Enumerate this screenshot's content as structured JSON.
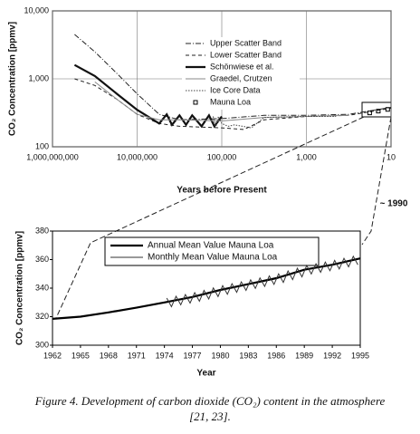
{
  "chart_data": [
    {
      "type": "line",
      "x_label": "Years before Present",
      "y_label": "CO₂ Concentration [ppmv]",
      "xlog": true,
      "ylog": true,
      "grid": true,
      "xlim": [
        1000000000,
        10
      ],
      "ylim": [
        100,
        10000
      ],
      "xticks": [
        {
          "value": 1000000000,
          "label": "1,000,000,000"
        },
        {
          "value": 10000000,
          "label": "10,000,000"
        },
        {
          "value": 100000,
          "label": "100,000"
        },
        {
          "value": 1000,
          "label": "1,000"
        },
        10
      ],
      "yticks": [
        100,
        {
          "value": 1000,
          "label": "1,000"
        },
        {
          "value": 10000,
          "label": "10,000"
        }
      ],
      "annotation": "~ 1990",
      "series": [
        {
          "name": "Upper Scatter Band",
          "color": "#222",
          "style": "dashdot",
          "x": [
            300000000,
            100000000,
            30000000,
            10000000,
            3000000,
            1000000,
            100000,
            10000,
            1000,
            100,
            10
          ],
          "values": [
            4500,
            2500,
            1200,
            600,
            300,
            250,
            260,
            290,
            290,
            300,
            380
          ]
        },
        {
          "name": "Lower Scatter Band",
          "color": "#222",
          "style": "dashed",
          "x": [
            300000000,
            100000000,
            30000000,
            10000000,
            3000000,
            1000000,
            100000,
            30000,
            10000,
            1000,
            100,
            10
          ],
          "values": [
            1000,
            800,
            500,
            300,
            220,
            200,
            190,
            180,
            250,
            280,
            290,
            370
          ]
        },
        {
          "name": "Schönwiese et al.",
          "color": "#111",
          "style": "thick",
          "x": [
            300000000,
            100000000,
            30000000,
            10000000,
            3000000,
            2000000,
            1500000,
            1000000,
            700000,
            500000,
            300000,
            200000,
            150000,
            100000
          ],
          "values": [
            1600,
            1100,
            600,
            350,
            220,
            300,
            210,
            290,
            210,
            290,
            200,
            290,
            200,
            280
          ]
        },
        {
          "name": "Graedel, Crutzen",
          "color": "#888",
          "style": "solid",
          "x": [
            100000000,
            30000000,
            10000000,
            3000000,
            1000000,
            100000,
            10000,
            1000,
            100
          ],
          "values": [
            900,
            500,
            300,
            250,
            250,
            240,
            270,
            280,
            290
          ]
        },
        {
          "name": "Ice Core Data",
          "color": "#444",
          "style": "dotted",
          "x": [
            160000,
            140000,
            120000,
            100000,
            70000,
            50000,
            20000,
            10000,
            1000,
            200
          ],
          "values": [
            280,
            190,
            280,
            220,
            200,
            210,
            190,
            270,
            280,
            280
          ]
        },
        {
          "name": "Mauna Loa",
          "color": "#000",
          "style": "square",
          "x": [
            32,
            20,
            12
          ],
          "values": [
            315,
            335,
            355
          ]
        }
      ]
    },
    {
      "type": "line",
      "x_label": "Year",
      "y_label": "CO₂ Concentration [ppmv]",
      "grid": false,
      "xlim": [
        1962,
        1995
      ],
      "ylim": [
        300,
        380
      ],
      "xticks": [
        1962,
        1965,
        1968,
        1971,
        1974,
        1977,
        1980,
        1983,
        1986,
        1989,
        1992,
        1995
      ],
      "yticks": [
        300,
        320,
        340,
        360,
        380
      ],
      "series": [
        {
          "name": "Annual Mean Value Mauna Loa",
          "color": "#000",
          "style": "thick",
          "x": [
            1962,
            1965,
            1968,
            1971,
            1974,
            1977,
            1980,
            1983,
            1986,
            1989,
            1992,
            1995
          ],
          "values": [
            318.5,
            320,
            323,
            326.3,
            330,
            333.8,
            338.7,
            342.8,
            347,
            352.9,
            356.4,
            360.8
          ]
        },
        {
          "name": "Monthly Mean Value Mauna Loa",
          "color": "#333",
          "style": "solid",
          "x": [
            1974.25,
            1974.75,
            1975.25,
            1975.75,
            1976.25,
            1976.75,
            1977.25,
            1977.75,
            1978.25,
            1978.75,
            1979.25,
            1979.75,
            1980.25,
            1980.75,
            1981.25,
            1981.75,
            1982.25,
            1982.75,
            1983.25,
            1983.75,
            1984.25,
            1984.75,
            1985.25,
            1985.75,
            1986.25,
            1986.75,
            1987.25,
            1987.75,
            1988.25,
            1988.75,
            1989.25,
            1989.75,
            1990.25,
            1990.75,
            1991.25,
            1991.75,
            1992.25,
            1992.75,
            1993.25,
            1993.75,
            1994.25,
            1994.75
          ],
          "values": [
            333,
            327,
            334.3,
            328.3,
            335.5,
            329.5,
            336.8,
            330.8,
            338.4,
            332.4,
            340.1,
            334.1,
            341.7,
            335.7,
            343.1,
            337.1,
            344.4,
            338.4,
            345.8,
            339.8,
            347.2,
            341.2,
            348.6,
            342.6,
            350,
            344,
            352,
            346,
            353.9,
            347.9,
            355.9,
            349.9,
            357.1,
            351.1,
            358.2,
            352.2,
            359.4,
            353.4,
            360.9,
            354.9,
            362.3,
            356.3
          ]
        }
      ]
    }
  ],
  "caption": {
    "lines": [
      "Figure 4.  Development of carbon dioxide (CO₂) content in the atmosphere",
      "[21, 23]."
    ]
  }
}
